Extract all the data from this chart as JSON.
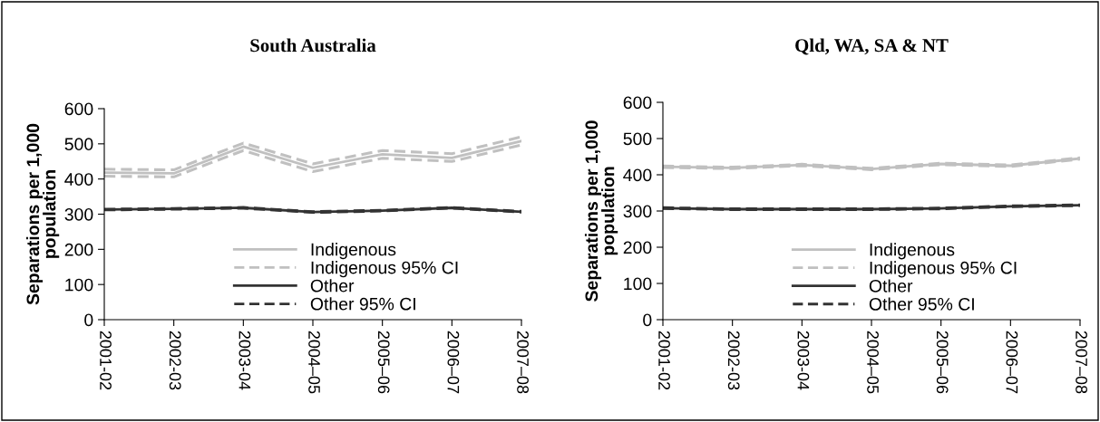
{
  "chart_data": [
    {
      "type": "line",
      "title": "South Australia",
      "ylabel": "Separations per 1,000\npopulation",
      "categories": [
        "2001-02",
        "2002-03",
        "2003-04",
        "2004–05",
        "2005–06",
        "2006–07",
        "2007–08"
      ],
      "ylim": [
        0,
        600
      ],
      "yticks": [
        0,
        100,
        200,
        300,
        400,
        500,
        600
      ],
      "legend": "bottom right",
      "grid": false,
      "series": [
        {
          "name": "Indigenous",
          "color": "#c0c0c0",
          "line_style": "solid",
          "values": [
            418,
            416,
            492,
            432,
            470,
            460,
            508
          ]
        },
        {
          "name": "Indigenous 95% CI",
          "color": "#c0c0c0",
          "line_style": "dashed",
          "values": [
            428,
            426,
            502,
            443,
            481,
            472,
            520
          ]
        },
        {
          "color": "#c0c0c0",
          "line_style": "dashed",
          "values": [
            408,
            406,
            481,
            421,
            459,
            450,
            497
          ]
        },
        {
          "name": "Other",
          "color": "#333333",
          "line_style": "solid",
          "values": [
            313,
            315,
            318,
            306,
            310,
            318,
            307
          ]
        },
        {
          "name": "Other 95% CI",
          "color": "#333333",
          "line_style": "dashed",
          "values": [
            314,
            316,
            319,
            307,
            311,
            319,
            308
          ]
        },
        {
          "color": "#333333",
          "line_style": "dashed",
          "values": [
            312,
            314,
            317,
            305,
            309,
            317,
            306
          ]
        }
      ]
    },
    {
      "type": "line",
      "title": "Qld, WA, SA & NT",
      "ylabel": "Separations per 1,000\npopulation",
      "categories": [
        "2001-02",
        "2002-03",
        "2003-04",
        "2004–05",
        "2005–06",
        "2006–07",
        "2007–08"
      ],
      "ylim": [
        0,
        600
      ],
      "yticks": [
        0,
        100,
        200,
        300,
        400,
        500,
        600
      ],
      "legend": "bottom right",
      "grid": false,
      "series": [
        {
          "name": "Indigenous",
          "color": "#c0c0c0",
          "line_style": "solid",
          "values": [
            422,
            419,
            427,
            416,
            430,
            425,
            445
          ]
        },
        {
          "name": "Indigenous 95% CI",
          "color": "#c0c0c0",
          "line_style": "dashed",
          "values": [
            424,
            421,
            429,
            418,
            432,
            427,
            447
          ]
        },
        {
          "color": "#c0c0c0",
          "line_style": "dashed",
          "values": [
            420,
            417,
            425,
            414,
            428,
            423,
            443
          ]
        },
        {
          "name": "Other",
          "color": "#333333",
          "line_style": "solid",
          "values": [
            308,
            305,
            305,
            305,
            307,
            313,
            316
          ]
        },
        {
          "name": "Other 95% CI",
          "color": "#333333",
          "line_style": "dashed",
          "values": [
            309,
            306,
            306,
            306,
            308,
            314,
            317
          ]
        },
        {
          "color": "#333333",
          "line_style": "dashed",
          "values": [
            307,
            304,
            304,
            304,
            306,
            312,
            315
          ]
        }
      ]
    }
  ]
}
